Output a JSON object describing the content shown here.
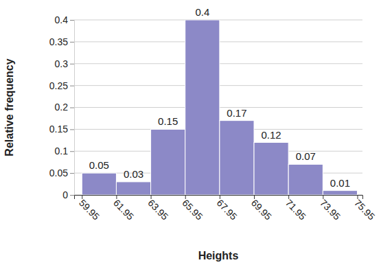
{
  "chart_data": {
    "type": "histogram",
    "x_label": "Heights",
    "y_label": "Relative frequency",
    "bins": [
      59.95,
      61.95,
      63.95,
      65.95,
      67.95,
      69.95,
      71.95,
      73.95,
      75.95
    ],
    "values": [
      0.05,
      0.03,
      0.15,
      0.4,
      0.17,
      0.12,
      0.07,
      0.01
    ],
    "color": "#8c89c7",
    "xlim": [
      59.5,
      76.25
    ],
    "ylim": [
      0,
      0.4
    ],
    "xticks": [
      59.95,
      61.95,
      63.95,
      65.95,
      67.95,
      69.95,
      71.95,
      73.95,
      75.95
    ],
    "yticks": [
      0,
      0.05,
      0.1,
      0.15,
      0.2,
      0.25,
      0.3,
      0.35,
      0.4
    ],
    "grid": true,
    "data_labels": true
  }
}
